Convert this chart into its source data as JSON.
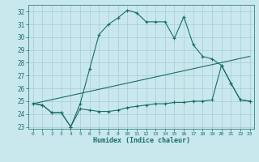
{
  "xlabel": "Humidex (Indice chaleur)",
  "bg_color": "#c8e8ee",
  "line_color": "#1a6e62",
  "grid_color": "#a8ccd4",
  "xlim": [
    -0.5,
    23.5
  ],
  "ylim": [
    22.85,
    32.55
  ],
  "yticks": [
    23,
    24,
    25,
    26,
    27,
    28,
    29,
    30,
    31,
    32
  ],
  "xticks": [
    0,
    1,
    2,
    3,
    4,
    5,
    6,
    7,
    8,
    9,
    10,
    11,
    12,
    13,
    14,
    15,
    16,
    17,
    18,
    19,
    20,
    21,
    22,
    23
  ],
  "curve1_x": [
    0,
    1,
    2,
    3,
    4,
    5,
    6,
    7,
    8,
    9,
    10,
    11,
    12,
    13,
    14,
    15,
    16,
    17,
    18,
    19,
    20,
    21,
    22,
    23
  ],
  "curve1_y": [
    24.8,
    24.7,
    24.1,
    24.1,
    23.0,
    24.8,
    27.5,
    30.2,
    31.0,
    31.5,
    32.1,
    31.9,
    31.2,
    31.2,
    31.2,
    29.9,
    31.6,
    29.4,
    28.5,
    28.3,
    27.8,
    26.4,
    25.1,
    25.0
  ],
  "curve2_x": [
    0,
    1,
    2,
    3,
    4,
    5,
    6,
    7,
    8,
    9,
    10,
    11,
    12,
    13,
    14,
    15,
    16,
    17,
    18,
    19,
    20,
    21,
    22,
    23
  ],
  "curve2_y": [
    24.8,
    24.7,
    24.1,
    24.1,
    23.0,
    24.4,
    24.3,
    24.2,
    24.2,
    24.3,
    24.5,
    24.6,
    24.7,
    24.8,
    24.8,
    24.9,
    24.9,
    25.0,
    25.0,
    25.1,
    27.8,
    26.4,
    25.1,
    25.0
  ],
  "line3_x": [
    0,
    23
  ],
  "line3_y": [
    24.8,
    28.5
  ]
}
